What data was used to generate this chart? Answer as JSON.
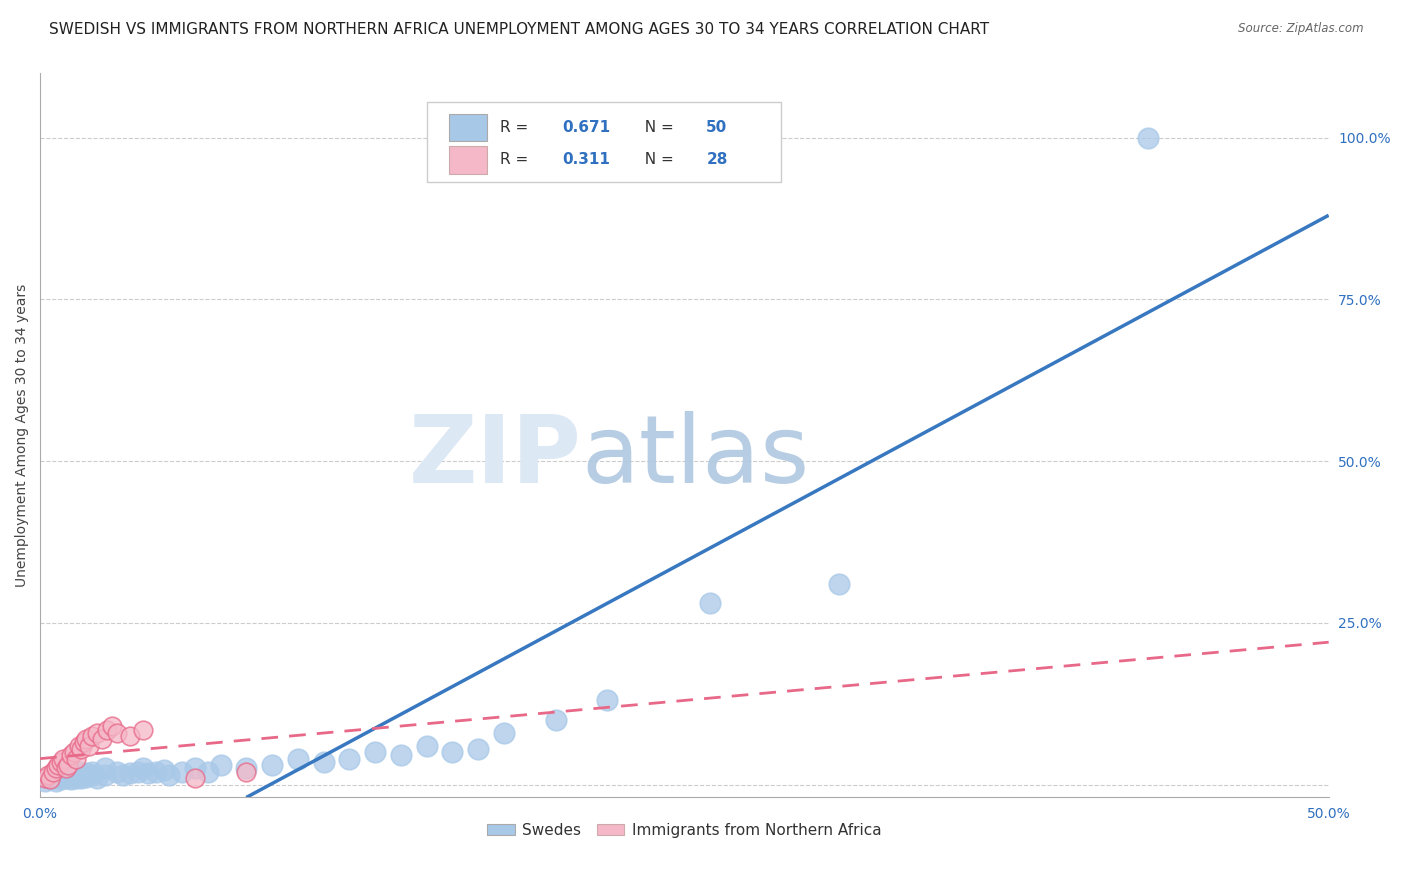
{
  "title": "SWEDISH VS IMMIGRANTS FROM NORTHERN AFRICA UNEMPLOYMENT AMONG AGES 30 TO 34 YEARS CORRELATION CHART",
  "source": "Source: ZipAtlas.com",
  "ylabel": "Unemployment Among Ages 30 to 34 years",
  "xlim": [
    0.0,
    0.5
  ],
  "ylim": [
    -0.02,
    1.1
  ],
  "xticks": [
    0.0,
    0.1,
    0.2,
    0.3,
    0.4,
    0.5
  ],
  "xticklabels": [
    "0.0%",
    "",
    "",
    "",
    "",
    "50.0%"
  ],
  "yticks_right": [
    0.0,
    0.25,
    0.5,
    0.75,
    1.0
  ],
  "yticklabels_right": [
    "",
    "25.0%",
    "50.0%",
    "75.0%",
    "100.0%"
  ],
  "blue_R": 0.671,
  "blue_N": 50,
  "pink_R": 0.311,
  "pink_N": 28,
  "blue_color": "#a8c8e8",
  "pink_color": "#f4b8c8",
  "blue_line_color": "#3878c0",
  "pink_line_color": "#e86888",
  "blue_scatter_x": [
    0.002,
    0.004,
    0.005,
    0.006,
    0.007,
    0.008,
    0.01,
    0.01,
    0.012,
    0.012,
    0.014,
    0.015,
    0.015,
    0.016,
    0.018,
    0.018,
    0.02,
    0.02,
    0.022,
    0.025,
    0.025,
    0.03,
    0.032,
    0.035,
    0.038,
    0.04,
    0.042,
    0.045,
    0.048,
    0.05,
    0.055,
    0.06,
    0.065,
    0.07,
    0.08,
    0.09,
    0.1,
    0.11,
    0.12,
    0.13,
    0.14,
    0.15,
    0.16,
    0.17,
    0.18,
    0.2,
    0.22,
    0.26,
    0.31,
    0.43
  ],
  "blue_scatter_y": [
    0.005,
    0.008,
    0.01,
    0.006,
    0.012,
    0.008,
    0.01,
    0.015,
    0.008,
    0.012,
    0.01,
    0.015,
    0.02,
    0.01,
    0.012,
    0.018,
    0.015,
    0.02,
    0.01,
    0.015,
    0.025,
    0.02,
    0.015,
    0.018,
    0.02,
    0.025,
    0.018,
    0.02,
    0.022,
    0.015,
    0.02,
    0.025,
    0.02,
    0.03,
    0.025,
    0.03,
    0.04,
    0.035,
    0.04,
    0.05,
    0.045,
    0.06,
    0.05,
    0.055,
    0.08,
    0.1,
    0.13,
    0.28,
    0.31,
    1.0
  ],
  "pink_scatter_x": [
    0.002,
    0.003,
    0.004,
    0.005,
    0.006,
    0.007,
    0.008,
    0.009,
    0.01,
    0.011,
    0.012,
    0.013,
    0.014,
    0.015,
    0.016,
    0.017,
    0.018,
    0.019,
    0.02,
    0.022,
    0.024,
    0.026,
    0.028,
    0.03,
    0.035,
    0.04,
    0.06,
    0.08
  ],
  "pink_scatter_y": [
    0.01,
    0.015,
    0.008,
    0.02,
    0.025,
    0.03,
    0.035,
    0.04,
    0.025,
    0.03,
    0.045,
    0.05,
    0.04,
    0.06,
    0.055,
    0.065,
    0.07,
    0.06,
    0.075,
    0.08,
    0.07,
    0.085,
    0.09,
    0.08,
    0.075,
    0.085,
    0.01,
    0.02
  ],
  "blue_line_x0": 0.08,
  "blue_line_y0": -0.02,
  "blue_line_x1": 0.5,
  "blue_line_y1": 0.88,
  "pink_line_x0": 0.0,
  "pink_line_y0": 0.04,
  "pink_line_x1": 0.5,
  "pink_line_y1": 0.22,
  "bottom_legend_blue": "Swedes",
  "bottom_legend_pink": "Immigrants from Northern Africa",
  "title_fontsize": 11,
  "axis_label_fontsize": 10,
  "tick_fontsize": 10,
  "tick_color": "#3070c0"
}
